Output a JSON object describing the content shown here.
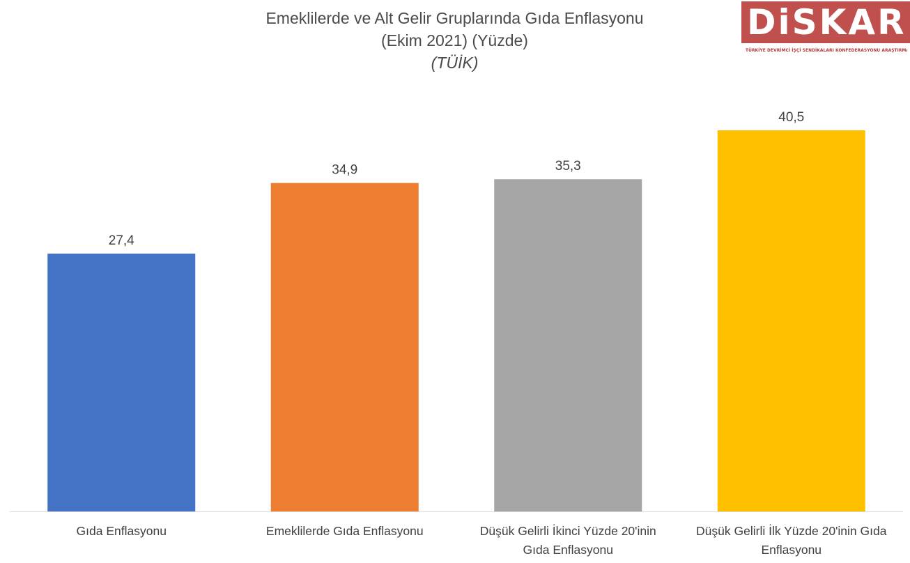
{
  "chart_data": {
    "type": "bar",
    "title": "Emeklilerde ve Alt Gelir Gruplarında Gıda Enflasyonu",
    "subtitle": "(Ekim 2021) (Yüzde)",
    "source": "(TÜİK)",
    "categories": [
      "Gıda Enflasyonu",
      "Emeklilerde Gıda Enflasyonu",
      "Düşük Gelirli İkinci Yüzde 20'inin Gıda Enflasyonu",
      "Düşük Gelirli İlk Yüzde 20'inin Gıda Enflasyonu"
    ],
    "category_label_lines": [
      [
        "Gıda Enflasyonu"
      ],
      [
        "Emeklilerde Gıda Enflasyonu"
      ],
      [
        "Düşük Gelirli İkinci Yüzde 20'inin",
        "Gıda Enflasyonu"
      ],
      [
        "Düşük Gelirli İlk Yüzde 20'inin Gıda",
        "Enflasyonu"
      ]
    ],
    "values": [
      27.4,
      34.9,
      35.3,
      40.5
    ],
    "value_labels": [
      "27,4",
      "34,9",
      "35,3",
      "40,5"
    ],
    "colors": [
      "#4472c4",
      "#ed7d31",
      "#a5a5a5",
      "#ffc000"
    ],
    "xlabel": "",
    "ylabel": "",
    "ylim": [
      0,
      40.5
    ],
    "grid": false,
    "legend": "none"
  },
  "logo": {
    "text": "DiSKAR",
    "subtitle": "TÜRKİYE DEVRİMCİ İŞÇİ SENDİKALARI KONFEDERASYONU ARAŞTIRMA MERKEZİ",
    "color": "#c0504d"
  }
}
